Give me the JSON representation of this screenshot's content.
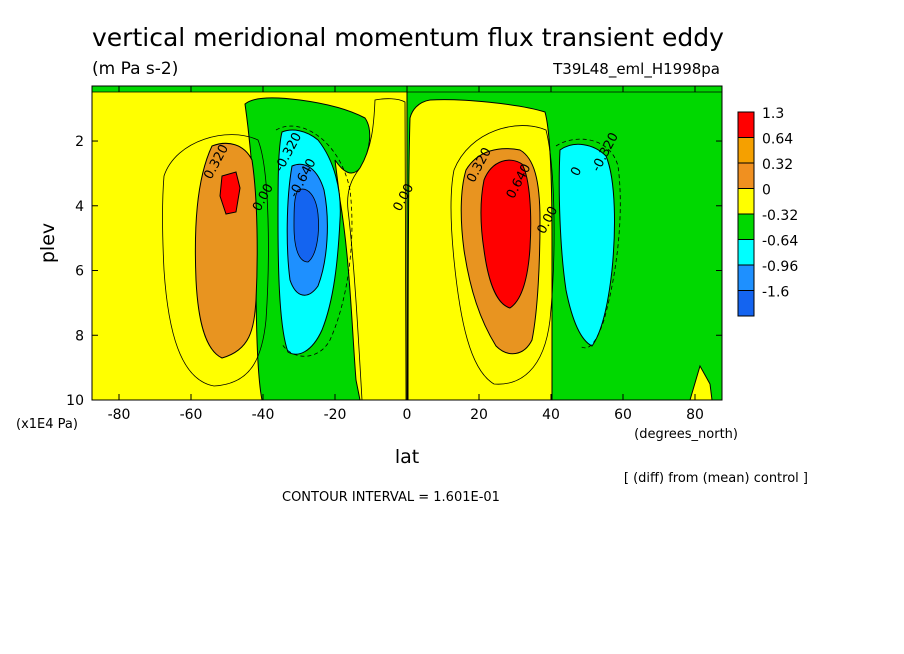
{
  "chart_data": {
    "type": "heatmap",
    "title": "vertical meridional momentum flux transient eddy",
    "subtitle": "(m Pa s-2)",
    "run_label": "T39L48_eml_H1998pa",
    "xlabel": "lat",
    "x_unit": "(degrees_north)",
    "ylabel": "plev",
    "y_unit": "(x1E4 Pa)",
    "x_ticks": [
      "-80",
      "-60",
      "-40",
      "-20",
      "0",
      "20",
      "40",
      "60",
      "80"
    ],
    "x_tick_values": [
      -80,
      -60,
      -40,
      -20,
      0,
      20,
      40,
      60,
      80
    ],
    "y_ticks": [
      "2",
      "4",
      "6",
      "8",
      "10"
    ],
    "y_tick_values": [
      2,
      4,
      6,
      8,
      10
    ],
    "xlim": [
      -87.5,
      87.5
    ],
    "ylim": [
      10,
      0.3
    ],
    "note": "[ (diff) from (mean) control ]",
    "contour_interval": "CONTOUR INTERVAL = 1.601E-01",
    "legend": {
      "placement": "right",
      "levels": [
        "1.3",
        "0.64",
        "0.32",
        "0",
        "-0.32",
        "-0.64",
        "-0.96",
        "-1.6"
      ],
      "colors": [
        "#ff0000",
        "#f5a000",
        "#f09020",
        "#ffff00",
        "#00d800",
        "#00ffff",
        "#1e90ff",
        "#1464f0"
      ]
    },
    "colors": {
      "positive_strong": "#ff0000",
      "positive_mid": "#e89420",
      "positive_weak": "#ffff00",
      "negative_weak": "#00d800",
      "negative_mid": "#00ffff",
      "negative_strong": "#1e90ff",
      "negative_extreme": "#1464f0"
    },
    "contour_labels": [
      {
        "text": "0.320",
        "lat": -52,
        "plev": 2.7
      },
      {
        "text": "-0.320",
        "lat": -32,
        "plev": 2.4
      },
      {
        "text": "-0.640",
        "lat": -28,
        "plev": 3.2
      },
      {
        "text": "0.00",
        "lat": -39,
        "plev": 3.8
      },
      {
        "text": "0.00",
        "lat": 0,
        "plev": 3.8
      },
      {
        "text": "0.320",
        "lat": 21,
        "plev": 2.8
      },
      {
        "text": "0.640",
        "lat": 32,
        "plev": 3.3
      },
      {
        "text": "0.00",
        "lat": 40,
        "plev": 4.5
      },
      {
        "text": "-0.320",
        "lat": 56,
        "plev": 2.4
      },
      {
        "text": "0",
        "lat": 48,
        "plev": 3.0
      }
    ],
    "extrema": [
      {
        "sign": "positive",
        "lat": -50,
        "plev": 3.5,
        "value": 0.8
      },
      {
        "sign": "negative",
        "lat": -30,
        "plev": 4.0,
        "value": -1.0
      },
      {
        "sign": "positive",
        "lat": 28,
        "plev": 4.2,
        "value": 1.3
      },
      {
        "sign": "negative",
        "lat": 52,
        "plev": 4.0,
        "value": -0.64
      }
    ]
  }
}
